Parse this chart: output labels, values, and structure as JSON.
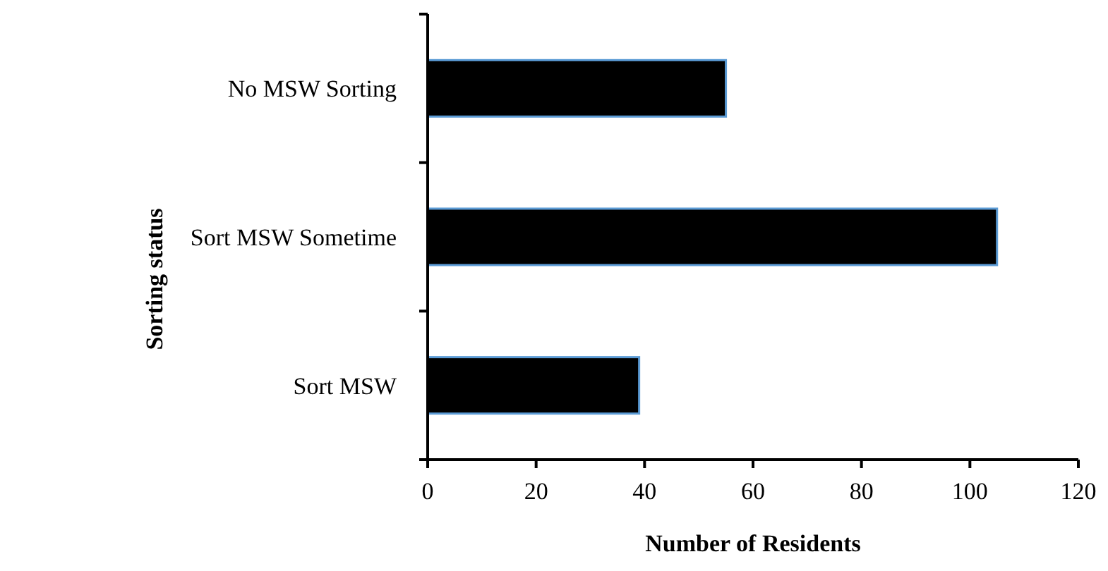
{
  "chart_data": {
    "type": "bar",
    "orientation": "horizontal",
    "xlabel": "Number of Residents",
    "ylabel": "Sorting status",
    "categories": [
      "No MSW Sorting",
      "Sort MSW Sometime",
      "Sort MSW"
    ],
    "values": [
      55,
      105,
      39
    ],
    "color": "#000000",
    "xlim": [
      0,
      120
    ],
    "xticks": [
      0,
      20,
      40,
      60,
      80,
      100,
      120
    ],
    "grid": false
  }
}
